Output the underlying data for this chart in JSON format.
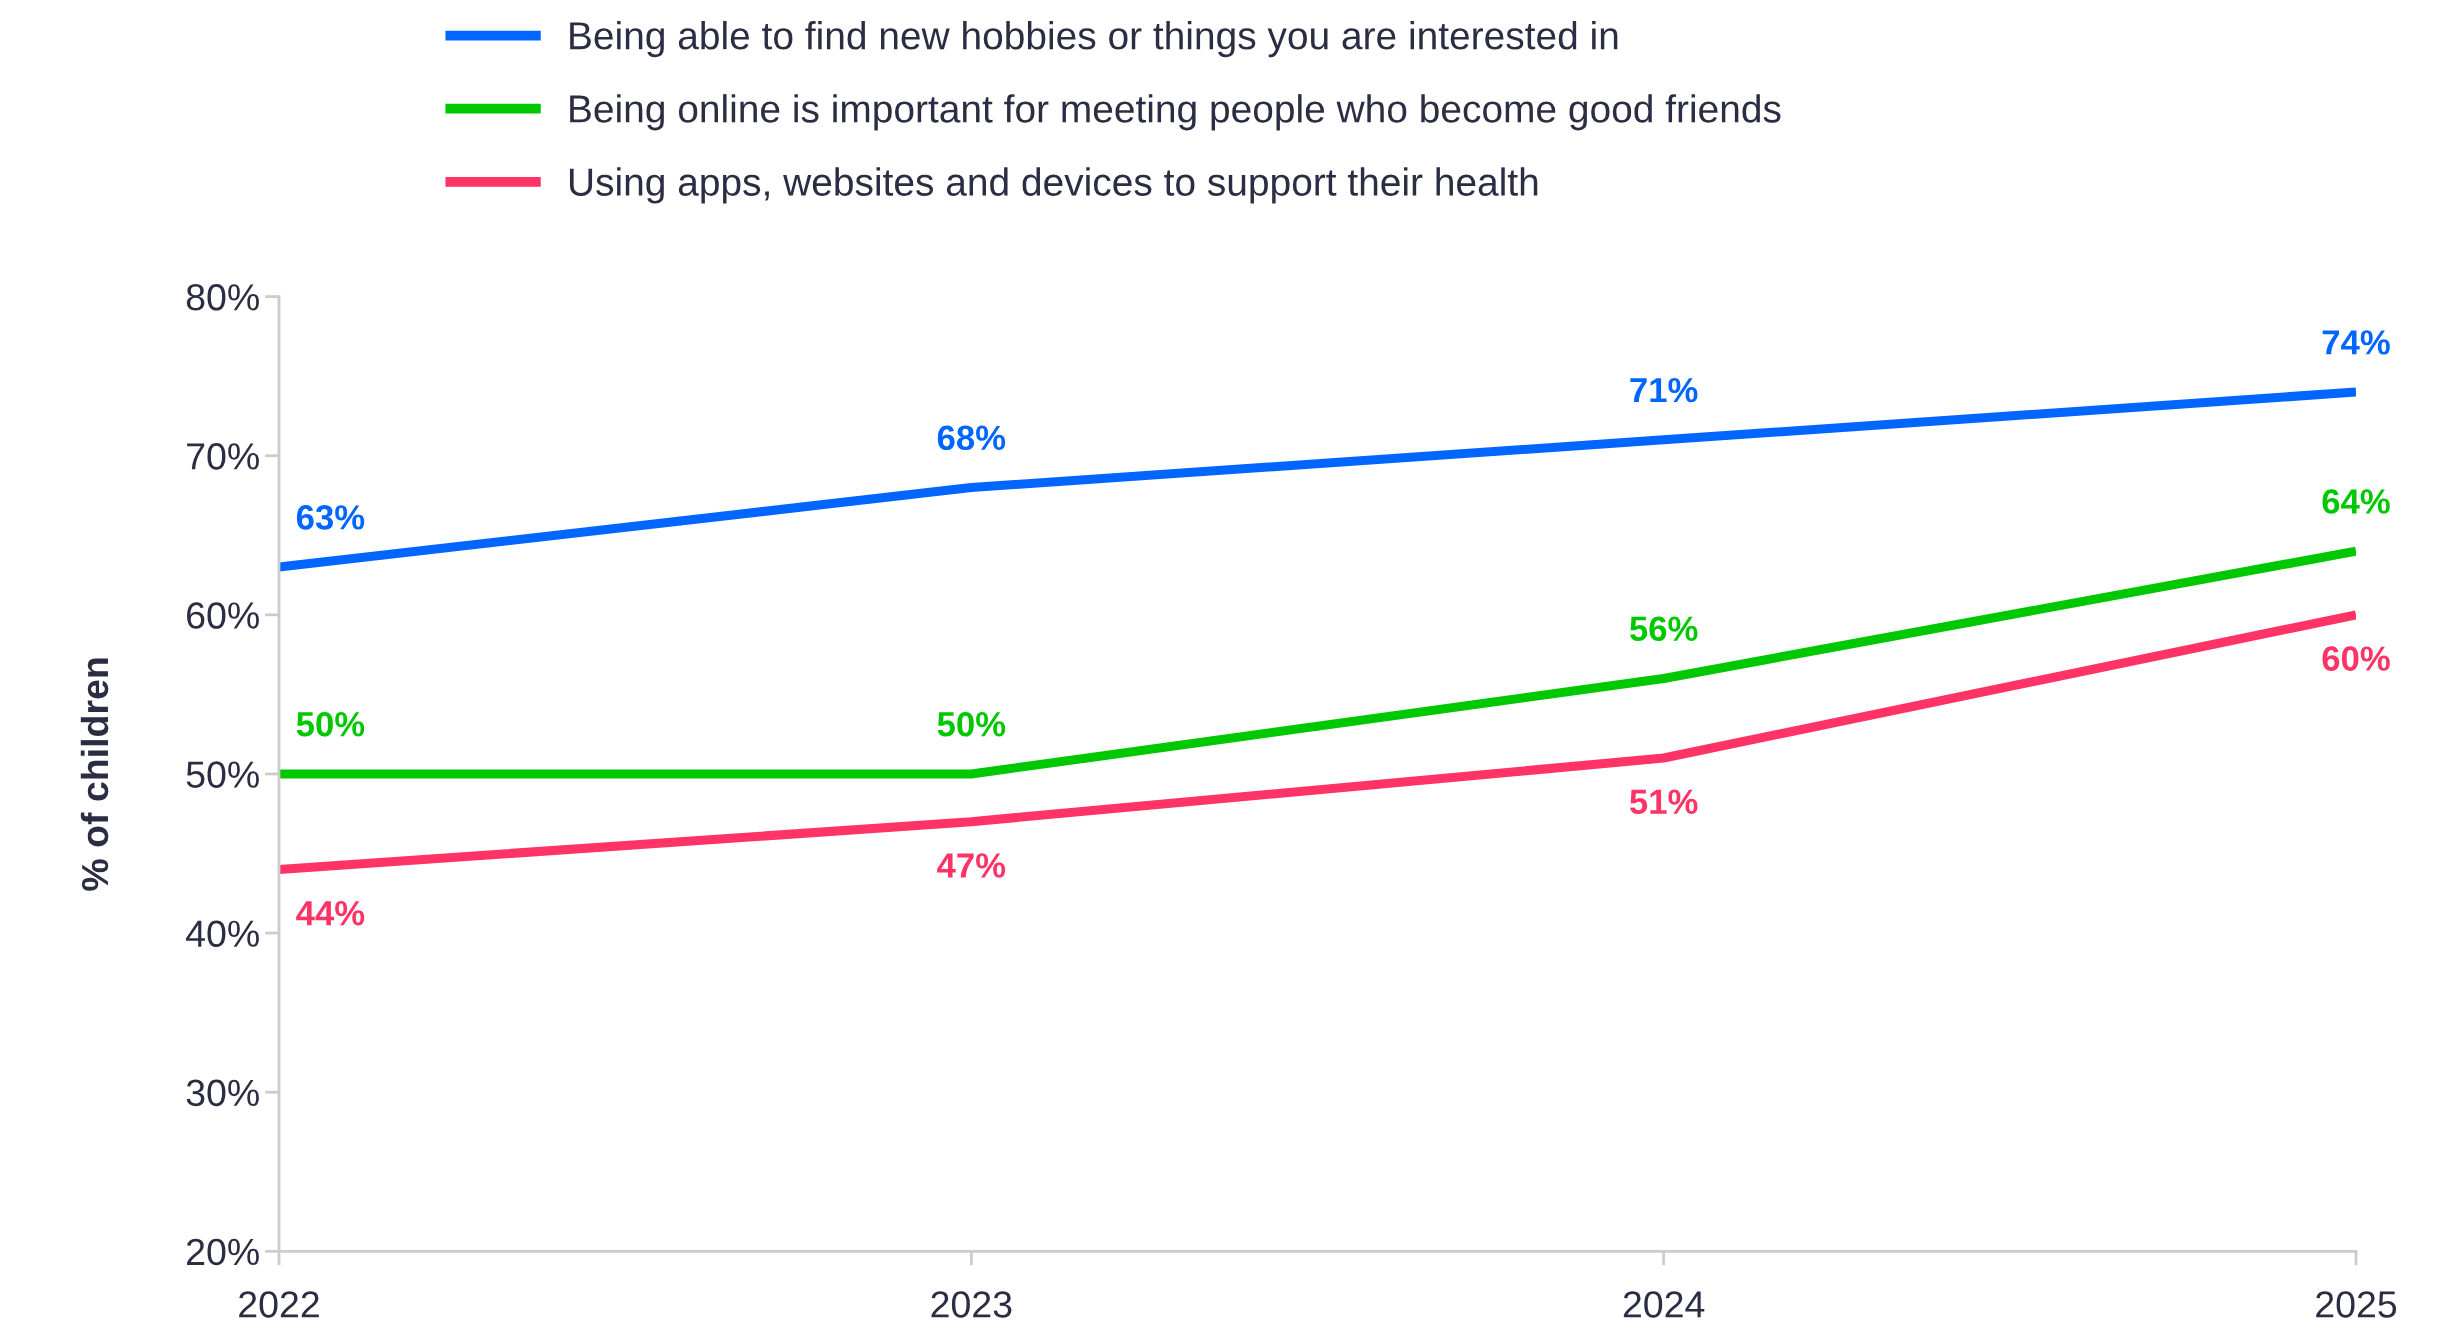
{
  "chart_data": {
    "type": "line",
    "ylabel": "% of children",
    "categories": [
      "2022",
      "2023",
      "2024",
      "2025"
    ],
    "series": [
      {
        "name": "Being able to find new hobbies or things you are interested in",
        "color": "#0066ff",
        "values": [
          63,
          68,
          71,
          74
        ],
        "value_labels": [
          "63%",
          "68%",
          "71%",
          "74%"
        ]
      },
      {
        "name": "Being online is important for meeting people who become good friends",
        "color": "#00c800",
        "values": [
          50,
          50,
          56,
          64
        ],
        "value_labels": [
          "50%",
          "50%",
          "56%",
          "64%"
        ]
      },
      {
        "name": "Using apps, websites and devices to support their health",
        "color": "#ff3366",
        "values": [
          44,
          47,
          51,
          60
        ],
        "value_labels": [
          "44%",
          "47%",
          "51%",
          "60%"
        ]
      }
    ],
    "ylim": [
      20,
      80
    ],
    "yticks": [
      {
        "value": 20,
        "label": "20%"
      },
      {
        "value": 30,
        "label": "30%"
      },
      {
        "value": 40,
        "label": "40%"
      },
      {
        "value": 50,
        "label": "50%"
      },
      {
        "value": 60,
        "label": "60%"
      },
      {
        "value": 70,
        "label": "70%"
      },
      {
        "value": 80,
        "label": "80%"
      }
    ],
    "grid": false,
    "legend": "top",
    "marker": "none",
    "line_style": "solid"
  }
}
